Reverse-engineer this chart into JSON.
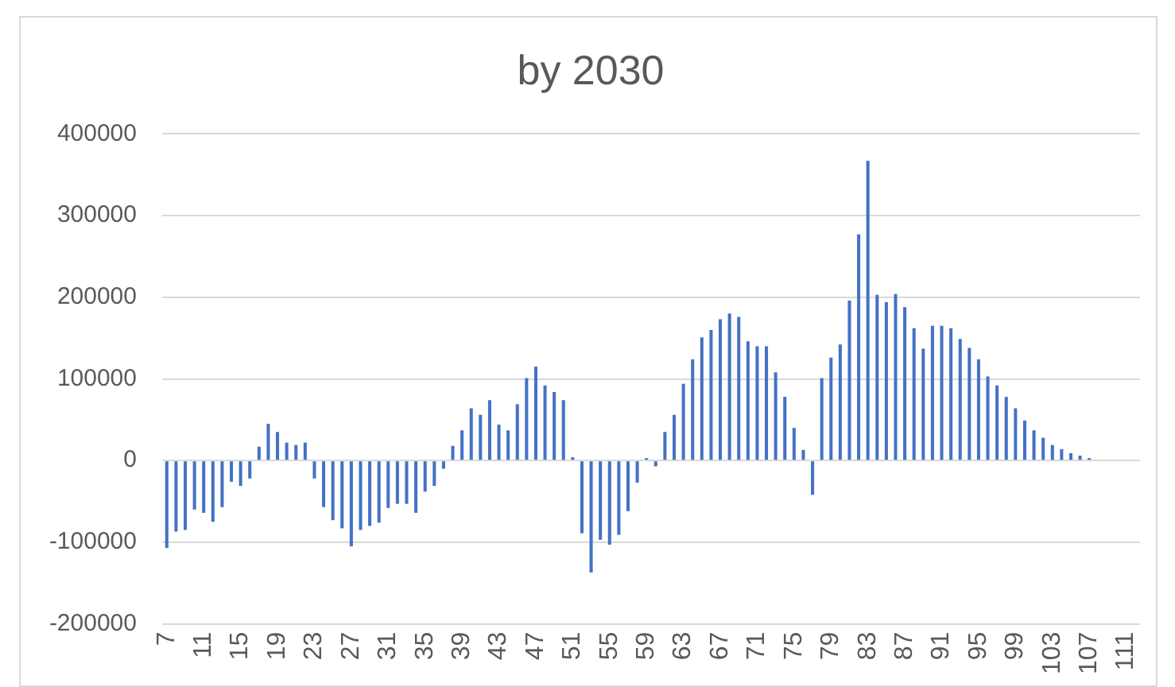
{
  "chart_data": {
    "type": "bar",
    "title": "by 2030",
    "categories": [
      "7",
      null,
      null,
      null,
      "11",
      null,
      null,
      null,
      "15",
      null,
      null,
      null,
      "19",
      null,
      null,
      null,
      "23",
      null,
      null,
      null,
      "27",
      null,
      null,
      null,
      "31",
      null,
      null,
      null,
      "35",
      null,
      null,
      null,
      "39",
      null,
      null,
      null,
      "43",
      null,
      null,
      null,
      "47",
      null,
      null,
      null,
      "51",
      null,
      null,
      null,
      "55",
      null,
      null,
      null,
      "59",
      null,
      null,
      null,
      "63",
      null,
      null,
      null,
      "67",
      null,
      null,
      null,
      "71",
      null,
      null,
      null,
      "75",
      null,
      null,
      null,
      "79",
      null,
      null,
      null,
      "83",
      null,
      null,
      null,
      "87",
      null,
      null,
      null,
      "91",
      null,
      null,
      null,
      "95",
      null,
      null,
      null,
      "99",
      null,
      null,
      null,
      "103",
      null,
      null,
      null,
      "107",
      null,
      null,
      null,
      "111",
      null
    ],
    "values": [
      -107000,
      -87000,
      -85000,
      -60000,
      -64000,
      -75000,
      -57000,
      -26000,
      -31000,
      -22000,
      17000,
      45000,
      35000,
      22000,
      19000,
      22000,
      -22000,
      -57000,
      -73000,
      -83000,
      -105000,
      -85000,
      -80000,
      -76000,
      -58000,
      -53000,
      -53000,
      -64000,
      -38000,
      -31000,
      -10000,
      18000,
      37000,
      64000,
      56000,
      74000,
      44000,
      37000,
      69000,
      101000,
      115000,
      92000,
      84000,
      74000,
      4000,
      -89000,
      -137000,
      -97000,
      -103000,
      -91000,
      -62000,
      -27000,
      3000,
      -7000,
      35000,
      56000,
      94000,
      124000,
      151000,
      160000,
      173000,
      180000,
      176000,
      146000,
      140000,
      140000,
      108000,
      78000,
      40000,
      13000,
      -42000,
      101000,
      126000,
      142000,
      196000,
      277000,
      367000,
      203000,
      194000,
      204000,
      188000,
      162000,
      137000,
      165000,
      165000,
      162000,
      149000,
      138000,
      124000,
      103000,
      92000,
      78000,
      64000,
      49000,
      37000,
      28000,
      19000,
      14000,
      9000,
      6000,
      3000,
      null,
      null,
      null,
      null,
      null
    ],
    "color": "#4472c4",
    "ylim": [
      -200000,
      400000
    ],
    "yticks": [
      -200000,
      -100000,
      0,
      100000,
      200000,
      300000,
      400000
    ],
    "grid": "y"
  }
}
